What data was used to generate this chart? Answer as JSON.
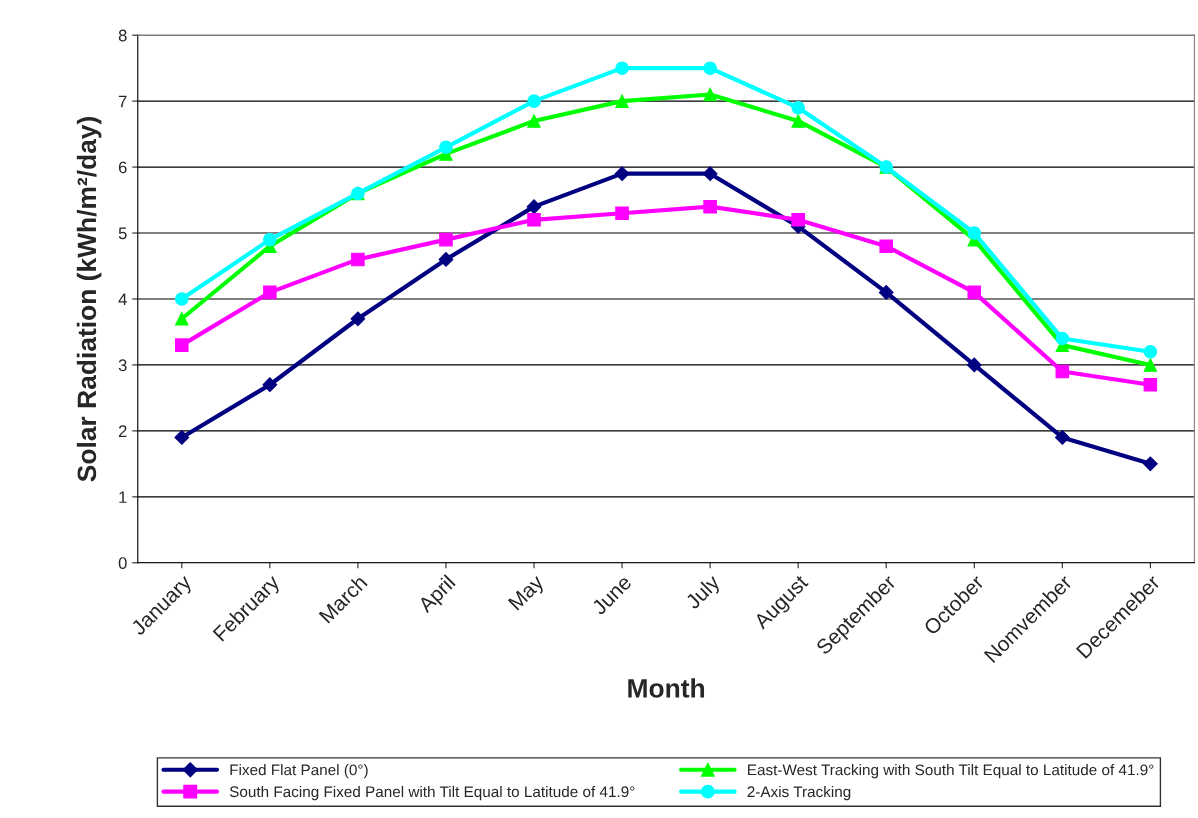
{
  "chart_data": {
    "type": "line",
    "xlabel": "Month",
    "ylabel": "Solar Radiation (kWh/m²/day)",
    "categories": [
      "January",
      "February",
      "March",
      "April",
      "May",
      "June",
      "July",
      "August",
      "September",
      "October",
      "Nomvember",
      "Decemeber"
    ],
    "series": [
      {
        "name": "Fixed Flat Panel (0°)",
        "color": "#000080",
        "marker": "diamond",
        "values": [
          1.9,
          2.7,
          3.7,
          4.6,
          5.4,
          5.9,
          5.9,
          5.1,
          4.1,
          3.0,
          1.9,
          1.5
        ]
      },
      {
        "name": "South Facing Fixed Panel with Tilt Equal to Latitude of 41.9°",
        "color": "#ff00ff",
        "marker": "square",
        "values": [
          3.3,
          4.1,
          4.6,
          4.9,
          5.2,
          5.3,
          5.4,
          5.2,
          4.8,
          4.1,
          2.9,
          2.7
        ]
      },
      {
        "name": "East-West Tracking with South Tilt Equal to Latitude of 41.9°",
        "color": "#00ff00",
        "marker": "triangle",
        "values": [
          3.7,
          4.8,
          5.6,
          6.2,
          6.7,
          7.0,
          7.1,
          6.7,
          6.0,
          4.9,
          3.3,
          3.0
        ]
      },
      {
        "name": "2-Axis Tracking",
        "color": "#00ffff",
        "marker": "circle",
        "values": [
          4.0,
          4.9,
          5.6,
          6.3,
          7.0,
          7.5,
          7.5,
          6.9,
          6.0,
          5.0,
          3.4,
          3.2
        ]
      }
    ],
    "ylim": [
      0,
      8
    ],
    "yticks": [
      0,
      1,
      2,
      3,
      4,
      5,
      6,
      7,
      8
    ],
    "grid": "y",
    "legend": "bottom",
    "line_style": "solid"
  }
}
